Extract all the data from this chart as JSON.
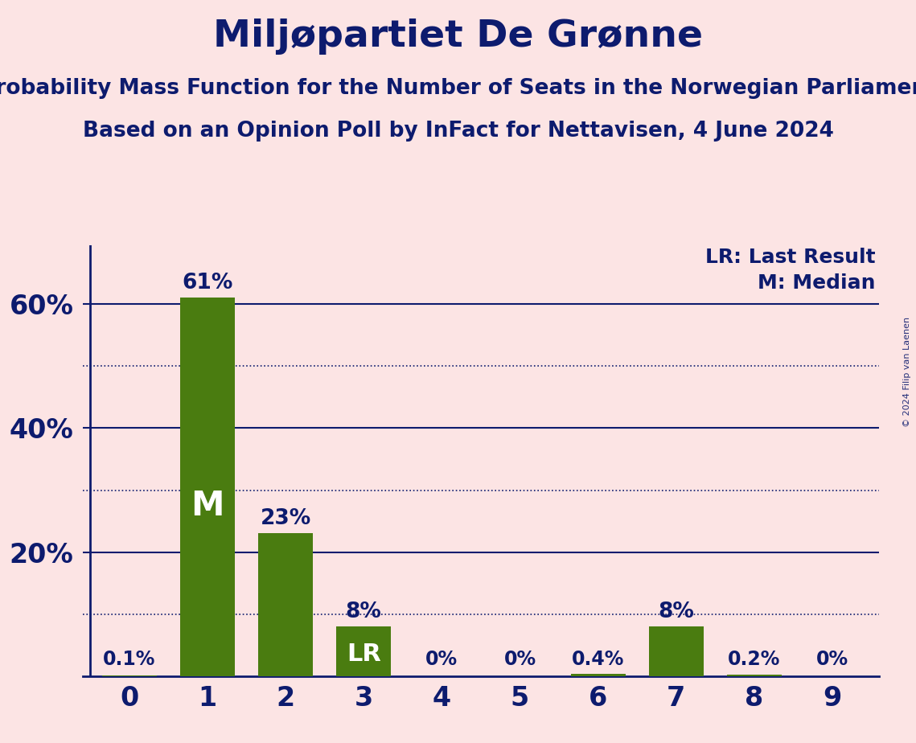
{
  "title": "Miljøpartiet De Grønne",
  "subtitle1": "Probability Mass Function for the Number of Seats in the Norwegian Parliament",
  "subtitle2": "Based on an Opinion Poll by InFact for Nettavisen, 4 June 2024",
  "categories": [
    0,
    1,
    2,
    3,
    4,
    5,
    6,
    7,
    8,
    9
  ],
  "values": [
    0.001,
    0.61,
    0.23,
    0.08,
    0.0,
    0.0,
    0.004,
    0.08,
    0.002,
    0.0
  ],
  "bar_labels": [
    "0.1%",
    "61%",
    "23%",
    "8%",
    "0%",
    "0%",
    "0.4%",
    "8%",
    "0.2%",
    "0%"
  ],
  "bar_color": "#4a7c10",
  "background_color": "#fce4e4",
  "text_color": "#0d1b6e",
  "title_fontsize": 34,
  "subtitle_fontsize": 19,
  "ylabel_ticks": [
    0,
    0.2,
    0.4,
    0.6
  ],
  "ylabel_labels": [
    "",
    "20%",
    "40%",
    "60%"
  ],
  "dotted_lines": [
    0.1,
    0.3,
    0.5
  ],
  "solid_lines": [
    0.2,
    0.4,
    0.6
  ],
  "median_bar": 1,
  "lr_bar": 3,
  "legend_text_lr": "LR: Last Result",
  "legend_text_m": "M: Median",
  "copyright_text": "© 2024 Filip van Laenen"
}
